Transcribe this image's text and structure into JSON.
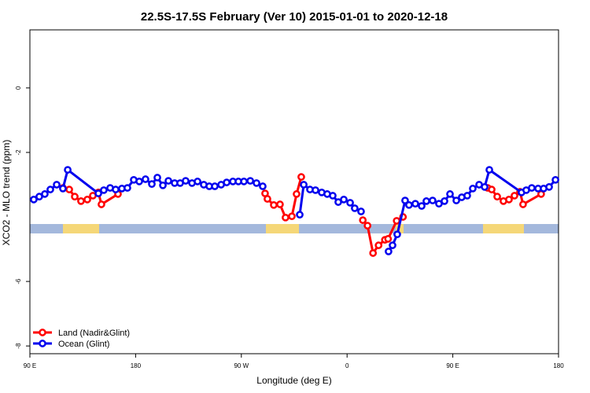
{
  "chart_data": {
    "type": "line",
    "title": "22.5S-17.5S February (Ver 10)   2015-01-01 to 2020-12-18",
    "x_label": "Longitude (deg E)",
    "y_label": "XCO2 - MLO trend (ppm)",
    "xlim": [
      90,
      540
    ],
    "ylim": [
      -8.24,
      1.8
    ],
    "xticks": [
      {
        "value": 90,
        "label": "90 E"
      },
      {
        "value": 180,
        "label": "180"
      },
      {
        "value": 270,
        "label": "90 W"
      },
      {
        "value": 360,
        "label": "0"
      },
      {
        "value": 450,
        "label": "90 E"
      },
      {
        "value": 540,
        "label": "180"
      }
    ],
    "yticks": [
      0,
      -2,
      -6,
      -8
    ],
    "legend": "bottom-left",
    "series": [
      {
        "name": "Land (Nadir&Glint)",
        "color": "#ff0000",
        "x": [
          118.1,
          123.5,
          128.2,
          133.5,
          138.9,
          143.6,
          148.3,
          150.9,
          165.0,
          null,
          290.2,
          292.2,
          297.6,
          302.9,
          307.6,
          313.0,
          317.0,
          321.0,
          null,
          373.4,
          377.4,
          382.1,
          386.8,
          392.2,
          394.9,
          402.2,
          407.6,
          null,
          479.7,
          483.1,
          487.8,
          493.1,
          497.8,
          502.5,
          507.2,
          509.8,
          525.2
        ],
        "values": [
          -3.1,
          -3.15,
          -3.37,
          -3.51,
          -3.46,
          -3.34,
          -3.24,
          -3.61,
          -3.29,
          null,
          -3.27,
          -3.44,
          -3.63,
          -3.61,
          -4.02,
          -3.98,
          -3.29,
          -2.76,
          null,
          -4.1,
          -4.27,
          -5.12,
          -4.88,
          -4.71,
          -4.68,
          -4.12,
          -4.0,
          null,
          -3.1,
          -3.15,
          -3.37,
          -3.51,
          -3.46,
          -3.34,
          -3.22,
          -3.61,
          -3.29
        ]
      },
      {
        "name": "Ocean (Glint)",
        "color": "#0000ee",
        "x": [
          93.3,
          98.0,
          102.7,
          107.4,
          112.8,
          118.1,
          122.2,
          148.3,
          152.9,
          158.3,
          163.0,
          168.3,
          173.0,
          178.4,
          183.1,
          188.4,
          193.8,
          198.5,
          203.2,
          207.9,
          213.2,
          217.9,
          222.6,
          228.0,
          232.7,
          238.0,
          242.7,
          247.4,
          252.8,
          257.5,
          262.8,
          267.5,
          272.2,
          277.6,
          282.9,
          288.2,
          null,
          319.7,
          323.1,
          328.4,
          333.1,
          338.4,
          343.1,
          347.8,
          352.5,
          357.2,
          362.6,
          366.5,
          371.9,
          null,
          395.3,
          398.7,
          402.7,
          409.4,
          412.7,
          418.1,
          423.5,
          427.5,
          432.8,
          438.2,
          442.9,
          447.6,
          453.0,
          457.6,
          462.3,
          467.0,
          472.4,
          477.1,
          481.1,
          508.5,
          512.5,
          517.2,
          522.6,
          527.3,
          532.0,
          537.4
        ],
        "values": [
          -3.46,
          -3.37,
          -3.29,
          -3.15,
          -3.0,
          -3.12,
          -2.54,
          -3.27,
          -3.17,
          -3.1,
          -3.15,
          -3.12,
          -3.1,
          -2.85,
          -2.9,
          -2.83,
          -2.98,
          -2.78,
          -3.02,
          -2.88,
          -2.95,
          -2.95,
          -2.88,
          -2.95,
          -2.9,
          -3.0,
          -3.05,
          -3.05,
          -3.0,
          -2.93,
          -2.9,
          -2.9,
          -2.9,
          -2.88,
          -2.95,
          -3.05,
          null,
          -3.93,
          -3.0,
          -3.15,
          -3.17,
          -3.24,
          -3.29,
          -3.34,
          -3.54,
          -3.46,
          -3.56,
          -3.73,
          -3.83,
          null,
          -5.07,
          -4.88,
          -4.54,
          -3.49,
          -3.63,
          -3.59,
          -3.66,
          -3.51,
          -3.49,
          -3.59,
          -3.51,
          -3.29,
          -3.49,
          -3.39,
          -3.34,
          -3.12,
          -3.0,
          -3.07,
          -2.54,
          -3.24,
          -3.17,
          -3.1,
          -3.12,
          -3.12,
          -3.07,
          -2.85
        ]
      }
    ]
  }
}
